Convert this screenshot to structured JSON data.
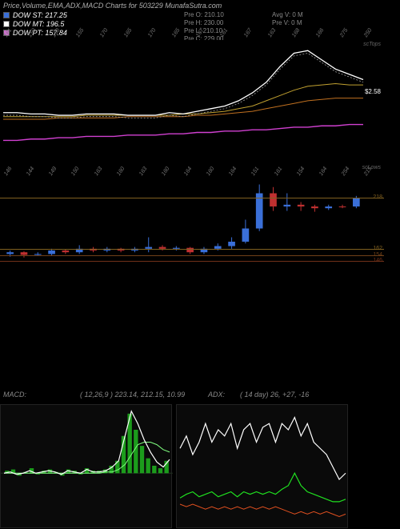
{
  "title": "Price,Volume,EMA,ADX,MACD Charts for 503229 MunafaSutra.com",
  "legend": [
    {
      "color": "#3a6fd8",
      "label": "DOW ST: 217.25"
    },
    {
      "color": "#ffffff",
      "label": "DOW MT: 196.5"
    },
    {
      "color": "#d070d0",
      "label": "DOW PT: 157.84"
    }
  ],
  "pre": [
    {
      "k": "Pre   O:",
      "v": "210.10"
    },
    {
      "k": "Pre   H:",
      "v": "230.00"
    },
    {
      "k": "Pre   L:",
      "v": "210.10"
    },
    {
      "k": "Pre   C:",
      "v": "229.00"
    }
  ],
  "avg": [
    {
      "k": "Avg V:",
      "v": "0  M"
    },
    {
      "k": "Pre  V:",
      "v": "0  M"
    }
  ],
  "price_panel": {
    "corner_top": "scTops",
    "corner_bot": "scLows",
    "last_price_tag": "$2.58",
    "xlabels_top": [
      "161",
      "150",
      "150",
      "155",
      "170",
      "165",
      "170",
      "165",
      "167",
      "161",
      "167",
      "163",
      "168",
      "166",
      "275",
      "250"
    ],
    "xlabels_bot": [
      "146",
      "144",
      "149",
      "150",
      "163",
      "160",
      "163",
      "160",
      "164",
      "160",
      "164",
      "151",
      "161",
      "154",
      "164",
      "254",
      "215"
    ],
    "lines": {
      "white": [
        0.55,
        0.55,
        0.56,
        0.56,
        0.57,
        0.57,
        0.56,
        0.56,
        0.56,
        0.57,
        0.57,
        0.57,
        0.55,
        0.56,
        0.54,
        0.52,
        0.5,
        0.46,
        0.4,
        0.32,
        0.2,
        0.1,
        0.08,
        0.15,
        0.22,
        0.26,
        0.3
      ],
      "gold": [
        0.58,
        0.58,
        0.58,
        0.58,
        0.58,
        0.58,
        0.57,
        0.57,
        0.57,
        0.57,
        0.57,
        0.57,
        0.57,
        0.56,
        0.56,
        0.55,
        0.54,
        0.52,
        0.5,
        0.46,
        0.42,
        0.38,
        0.35,
        0.34,
        0.33,
        0.34,
        0.34
      ],
      "orange": [
        0.6,
        0.6,
        0.6,
        0.6,
        0.59,
        0.59,
        0.59,
        0.59,
        0.59,
        0.58,
        0.58,
        0.58,
        0.58,
        0.58,
        0.57,
        0.57,
        0.56,
        0.55,
        0.54,
        0.52,
        0.5,
        0.48,
        0.46,
        0.45,
        0.44,
        0.44,
        0.44
      ],
      "magenta": [
        0.76,
        0.76,
        0.75,
        0.75,
        0.74,
        0.74,
        0.73,
        0.73,
        0.73,
        0.72,
        0.72,
        0.72,
        0.71,
        0.71,
        0.7,
        0.7,
        0.69,
        0.69,
        0.68,
        0.68,
        0.67,
        0.66,
        0.66,
        0.65,
        0.65,
        0.64,
        0.64
      ]
    },
    "colors": {
      "white": "#ffffff",
      "gold": "#c0a030",
      "orange": "#c07020",
      "magenta": "#d040d0",
      "dashed": "#a0a0a0"
    }
  },
  "candle_panel": {
    "hlines": [
      {
        "y": 0.2,
        "color": "#806020",
        "label": "218"
      },
      {
        "y": 0.78,
        "color": "#806020",
        "label": "162"
      },
      {
        "y": 0.85,
        "color": "#704018",
        "label": "154"
      },
      {
        "y": 0.92,
        "color": "#703018",
        "label": "146"
      }
    ],
    "candles": [
      {
        "o": 0.84,
        "c": 0.82,
        "h": 0.8,
        "l": 0.87,
        "color": "#3a6fd8"
      },
      {
        "o": 0.82,
        "c": 0.85,
        "h": 0.81,
        "l": 0.88,
        "color": "#c03030"
      },
      {
        "o": 0.85,
        "c": 0.84,
        "h": 0.82,
        "l": 0.86,
        "color": "#3a6fd8"
      },
      {
        "o": 0.84,
        "c": 0.8,
        "h": 0.78,
        "l": 0.86,
        "color": "#3a6fd8"
      },
      {
        "o": 0.8,
        "c": 0.82,
        "h": 0.79,
        "l": 0.84,
        "color": "#c03030"
      },
      {
        "o": 0.82,
        "c": 0.78,
        "h": 0.74,
        "l": 0.84,
        "color": "#3a6fd8"
      },
      {
        "o": 0.78,
        "c": 0.8,
        "h": 0.76,
        "l": 0.82,
        "color": "#c03030"
      },
      {
        "o": 0.8,
        "c": 0.78,
        "h": 0.76,
        "l": 0.82,
        "color": "#3a6fd8"
      },
      {
        "o": 0.78,
        "c": 0.8,
        "h": 0.77,
        "l": 0.82,
        "color": "#c03030"
      },
      {
        "o": 0.8,
        "c": 0.78,
        "h": 0.76,
        "l": 0.82,
        "color": "#3a6fd8"
      },
      {
        "o": 0.78,
        "c": 0.76,
        "h": 0.65,
        "l": 0.82,
        "color": "#3a6fd8"
      },
      {
        "o": 0.76,
        "c": 0.78,
        "h": 0.74,
        "l": 0.8,
        "color": "#c03030"
      },
      {
        "o": 0.78,
        "c": 0.77,
        "h": 0.75,
        "l": 0.8,
        "color": "#3a6fd8"
      },
      {
        "o": 0.77,
        "c": 0.82,
        "h": 0.76,
        "l": 0.84,
        "color": "#c03030"
      },
      {
        "o": 0.82,
        "c": 0.78,
        "h": 0.76,
        "l": 0.84,
        "color": "#3a6fd8"
      },
      {
        "o": 0.78,
        "c": 0.75,
        "h": 0.72,
        "l": 0.8,
        "color": "#3a6fd8"
      },
      {
        "o": 0.75,
        "c": 0.7,
        "h": 0.65,
        "l": 0.78,
        "color": "#3a6fd8"
      },
      {
        "o": 0.7,
        "c": 0.55,
        "h": 0.45,
        "l": 0.72,
        "color": "#3a6fd8"
      },
      {
        "o": 0.55,
        "c": 0.15,
        "h": 0.05,
        "l": 0.58,
        "color": "#3a6fd8"
      },
      {
        "o": 0.15,
        "c": 0.3,
        "h": 0.08,
        "l": 0.35,
        "color": "#c03030"
      },
      {
        "o": 0.3,
        "c": 0.28,
        "h": 0.15,
        "l": 0.35,
        "color": "#3a6fd8"
      },
      {
        "o": 0.28,
        "c": 0.3,
        "h": 0.25,
        "l": 0.35,
        "color": "#c03030"
      },
      {
        "o": 0.3,
        "c": 0.32,
        "h": 0.28,
        "l": 0.36,
        "color": "#c03030"
      },
      {
        "o": 0.32,
        "c": 0.3,
        "h": 0.28,
        "l": 0.34,
        "color": "#3a6fd8"
      },
      {
        "o": 0.3,
        "c": 0.3,
        "h": 0.28,
        "l": 0.32,
        "color": "#c03030"
      },
      {
        "o": 0.3,
        "c": 0.2,
        "h": 0.18,
        "l": 0.32,
        "color": "#3a6fd8"
      }
    ]
  },
  "macd_info": {
    "left_label": "MACD:",
    "left_values": "( 12,26,9 ) 223.14,  212.15,  10.99",
    "right_label": "ADX:",
    "right_values": "( 14   day) 26,  +27,  -16"
  },
  "macd_panel": {
    "bg": "#0a0a0a",
    "hist_color": "#20c020",
    "line1_color": "#ffffff",
    "line2_color": "#80ff80",
    "zero": 0.55,
    "hist": [
      0.02,
      0.03,
      -0.02,
      0.01,
      0.04,
      -0.01,
      0.02,
      0.03,
      0.01,
      -0.02,
      0.03,
      0.02,
      -0.01,
      0.04,
      0.02,
      0.02,
      0.03,
      0.06,
      0.1,
      0.3,
      0.48,
      0.35,
      0.22,
      0.12,
      0.06,
      0.04,
      0.1
    ],
    "line1": [
      0.55,
      0.54,
      0.56,
      0.55,
      0.53,
      0.55,
      0.54,
      0.53,
      0.54,
      0.56,
      0.53,
      0.54,
      0.55,
      0.52,
      0.54,
      0.54,
      0.53,
      0.5,
      0.45,
      0.25,
      0.05,
      0.15,
      0.28,
      0.38,
      0.46,
      0.5,
      0.44
    ],
    "line2": [
      0.55,
      0.55,
      0.55,
      0.55,
      0.55,
      0.55,
      0.55,
      0.55,
      0.55,
      0.55,
      0.55,
      0.55,
      0.55,
      0.55,
      0.55,
      0.55,
      0.54,
      0.54,
      0.52,
      0.48,
      0.4,
      0.32,
      0.3,
      0.3,
      0.32,
      0.36,
      0.38
    ]
  },
  "adx_panel": {
    "adx_color": "#ffffff",
    "plus_color": "#20e020",
    "minus_color": "#e05020",
    "adx": [
      0.35,
      0.25,
      0.4,
      0.3,
      0.15,
      0.3,
      0.2,
      0.25,
      0.15,
      0.35,
      0.2,
      0.15,
      0.3,
      0.18,
      0.15,
      0.3,
      0.15,
      0.2,
      0.1,
      0.25,
      0.15,
      0.3,
      0.35,
      0.4,
      0.5,
      0.6,
      0.55
    ],
    "plus": [
      0.75,
      0.72,
      0.7,
      0.74,
      0.72,
      0.7,
      0.74,
      0.72,
      0.7,
      0.74,
      0.7,
      0.72,
      0.7,
      0.72,
      0.7,
      0.72,
      0.68,
      0.65,
      0.55,
      0.65,
      0.7,
      0.72,
      0.74,
      0.76,
      0.78,
      0.78,
      0.76
    ],
    "minus": [
      0.8,
      0.82,
      0.8,
      0.82,
      0.84,
      0.82,
      0.84,
      0.82,
      0.84,
      0.82,
      0.84,
      0.82,
      0.84,
      0.82,
      0.84,
      0.82,
      0.84,
      0.86,
      0.88,
      0.86,
      0.88,
      0.86,
      0.88,
      0.86,
      0.88,
      0.9,
      0.88
    ]
  }
}
